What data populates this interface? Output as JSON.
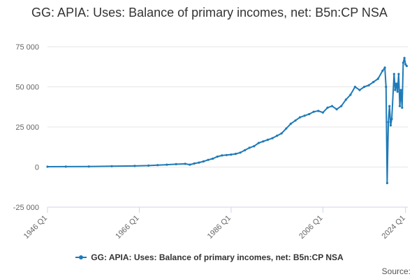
{
  "title": "GG: APIA: Uses: Balance of primary incomes, net: B5n:CP NSA",
  "source_label": "Source:",
  "colors": {
    "series": "#1f7ab8",
    "grid": "#e6e6e6",
    "axis": "#ccd6eb",
    "text": "#666666"
  },
  "chart_data": {
    "type": "line",
    "title": "GG: APIA: Uses: Balance of primary incomes, net: B5n:CP NSA",
    "xlabel": "",
    "ylabel": "",
    "xlim": [
      1946,
      2024.5
    ],
    "ylim": [
      -25000,
      75000
    ],
    "y_ticks": [
      -25000,
      0,
      25000,
      50000,
      75000
    ],
    "y_tick_labels": [
      "-25 000",
      "0",
      "25 000",
      "50 000",
      "75 000"
    ],
    "x_ticks": [
      1946,
      1966,
      1986,
      2006,
      2024
    ],
    "x_tick_labels": [
      "1946 Q1",
      "1966 Q1",
      "1986 Q1",
      "2006 Q1",
      "2024 Q1"
    ],
    "grid": "horizontal",
    "legend_position": "bottom",
    "series": [
      {
        "name": "GG: APIA: Uses: Balance of primary incomes, net: B5n:CP NSA",
        "points": [
          [
            1946,
            200
          ],
          [
            1950,
            250
          ],
          [
            1955,
            350
          ],
          [
            1960,
            500
          ],
          [
            1965,
            700
          ],
          [
            1968,
            900
          ],
          [
            1970,
            1200
          ],
          [
            1972,
            1500
          ],
          [
            1974,
            1800
          ],
          [
            1976,
            2000
          ],
          [
            1977,
            1500
          ],
          [
            1978,
            2200
          ],
          [
            1979,
            2800
          ],
          [
            1980,
            3500
          ],
          [
            1981,
            4500
          ],
          [
            1982,
            5200
          ],
          [
            1983,
            6500
          ],
          [
            1984,
            7200
          ],
          [
            1985,
            7500
          ],
          [
            1986,
            7800
          ],
          [
            1987,
            8200
          ],
          [
            1988,
            9000
          ],
          [
            1989,
            10500
          ],
          [
            1990,
            12000
          ],
          [
            1991,
            13000
          ],
          [
            1992,
            15000
          ],
          [
            1993,
            16000
          ],
          [
            1994,
            17000
          ],
          [
            1995,
            18000
          ],
          [
            1996,
            19500
          ],
          [
            1997,
            21000
          ],
          [
            1998,
            24000
          ],
          [
            1999,
            27000
          ],
          [
            2000,
            29000
          ],
          [
            2001,
            31000
          ],
          [
            2002,
            32000
          ],
          [
            2003,
            33000
          ],
          [
            2004,
            34500
          ],
          [
            2005,
            35000
          ],
          [
            2006,
            34000
          ],
          [
            2007,
            37000
          ],
          [
            2008,
            38000
          ],
          [
            2009,
            36000
          ],
          [
            2010,
            38000
          ],
          [
            2011,
            42000
          ],
          [
            2012,
            45000
          ],
          [
            2013,
            50000
          ],
          [
            2014,
            48000
          ],
          [
            2015,
            50000
          ],
          [
            2016,
            51000
          ],
          [
            2017,
            53000
          ],
          [
            2018,
            55000
          ],
          [
            2019,
            60000
          ],
          [
            2019.5,
            62000
          ],
          [
            2019.75,
            50000
          ],
          [
            2020,
            -10000
          ],
          [
            2020.25,
            28000
          ],
          [
            2020.5,
            38000
          ],
          [
            2020.75,
            26000
          ],
          [
            2021,
            30000
          ],
          [
            2021.5,
            58000
          ],
          [
            2021.75,
            48000
          ],
          [
            2022,
            52000
          ],
          [
            2022.25,
            47000
          ],
          [
            2022.5,
            58000
          ],
          [
            2022.75,
            38000
          ],
          [
            2023,
            48000
          ],
          [
            2023.25,
            37000
          ],
          [
            2023.5,
            65000
          ],
          [
            2023.75,
            68000
          ],
          [
            2024,
            64000
          ],
          [
            2024.25,
            63000
          ]
        ]
      }
    ]
  }
}
